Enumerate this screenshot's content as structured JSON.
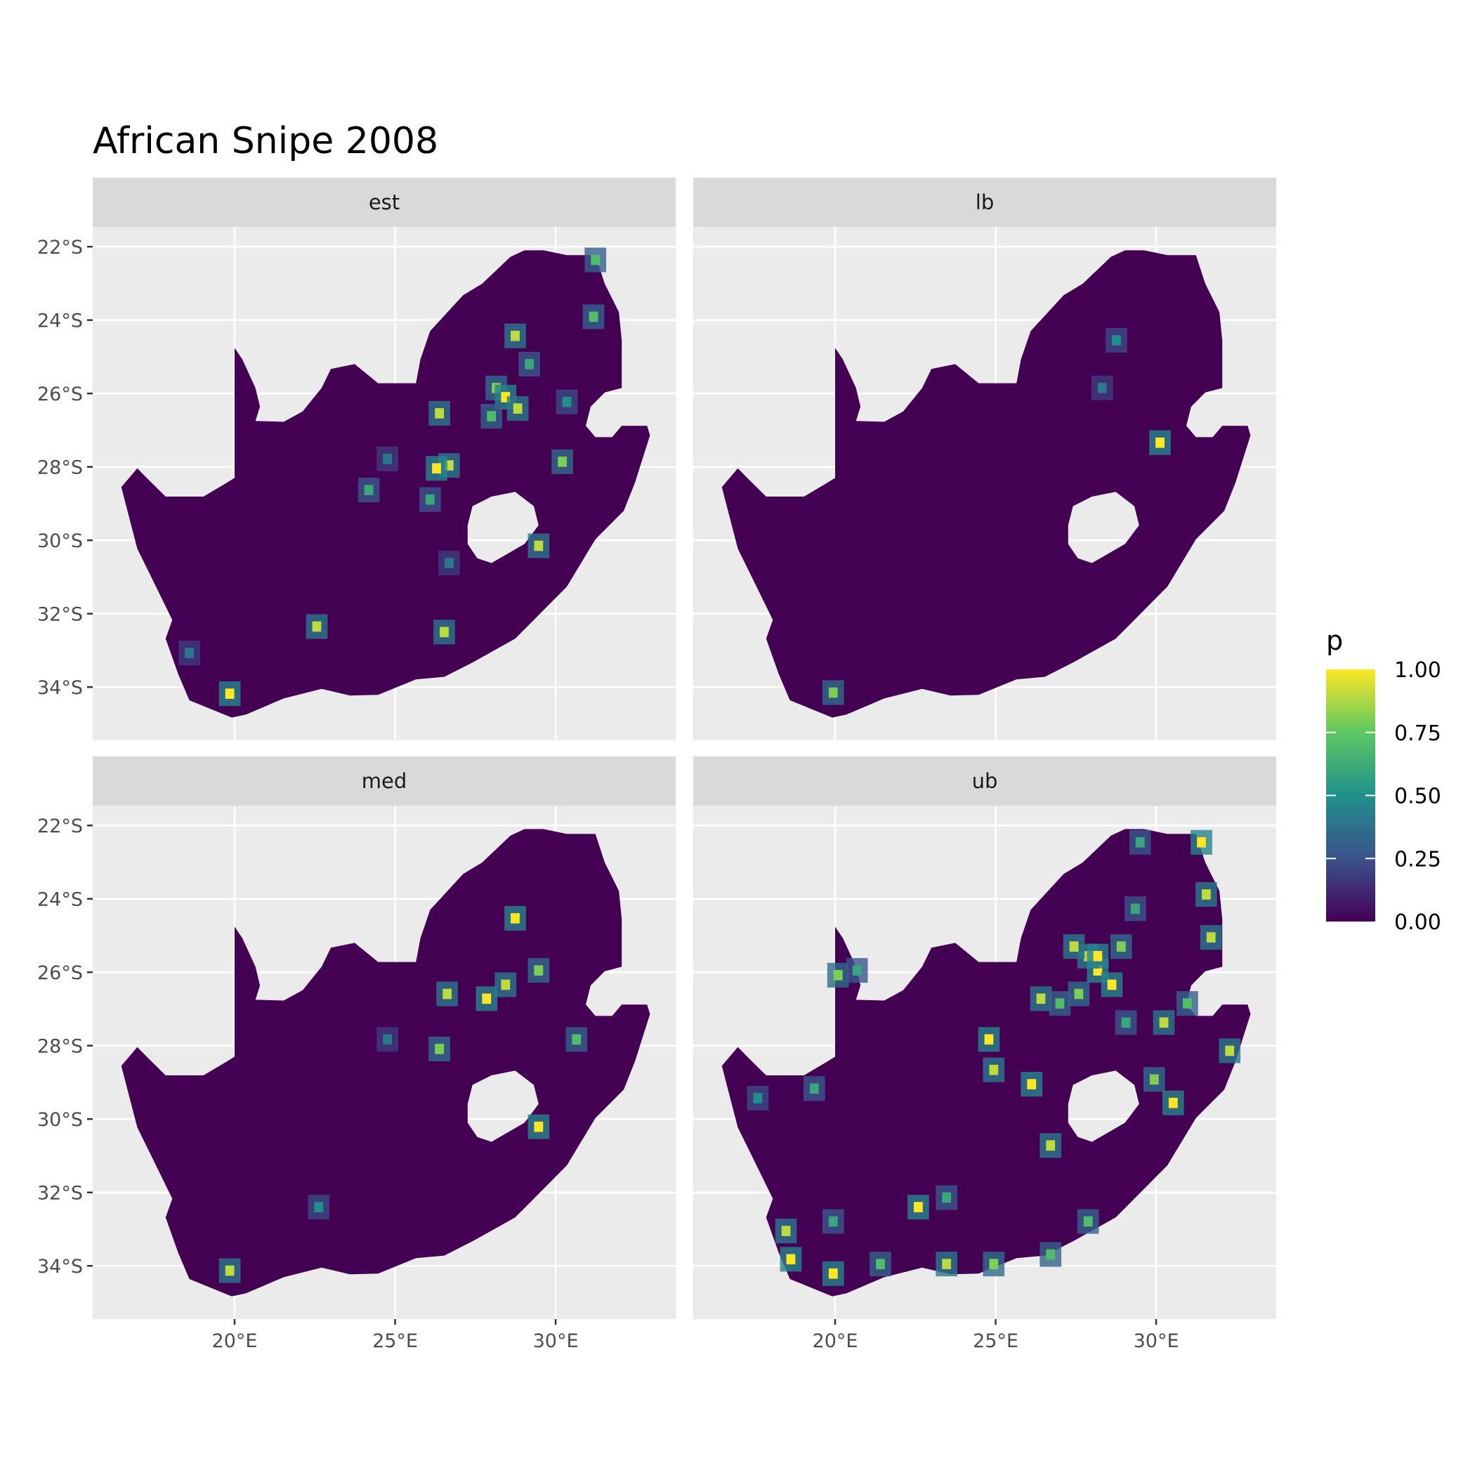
{
  "chart_data": {
    "type": "heatmap",
    "title": "African Snipe 2008",
    "facets": [
      "est",
      "lb",
      "med",
      "ub"
    ],
    "xlim": [
      15.58,
      33.74
    ],
    "ylim": [
      -35.45,
      -21.46
    ],
    "grid": true,
    "x_ticks": [
      {
        "value": 20,
        "label": "20°E"
      },
      {
        "value": 25,
        "label": "25°E"
      },
      {
        "value": 30,
        "label": "30°E"
      }
    ],
    "y_ticks": [
      {
        "value": -22,
        "label": "22°S"
      },
      {
        "value": -24,
        "label": "24°S"
      },
      {
        "value": -26,
        "label": "26°S"
      },
      {
        "value": -28,
        "label": "28°S"
      },
      {
        "value": -30,
        "label": "30°S"
      },
      {
        "value": -32,
        "label": "32°S"
      },
      {
        "value": -34,
        "label": "34°S"
      }
    ],
    "legend": {
      "title": "p",
      "position": "right",
      "palette": "viridis",
      "colors": [
        "#440154",
        "#3b528b",
        "#21908c",
        "#5dc863",
        "#fde725"
      ],
      "range": [
        0,
        1
      ],
      "ticks": [
        {
          "value": 1.0,
          "label": "1.00"
        },
        {
          "value": 0.75,
          "label": "0.75"
        },
        {
          "value": 0.5,
          "label": "0.50"
        },
        {
          "value": 0.25,
          "label": "0.25"
        },
        {
          "value": 0.0,
          "label": "0.00"
        }
      ]
    },
    "background_value": 0.0,
    "region_outline": [
      [
        20.0,
        -24.76
      ],
      [
        20.24,
        -25.07
      ],
      [
        20.65,
        -25.85
      ],
      [
        20.79,
        -26.36
      ],
      [
        20.65,
        -26.75
      ],
      [
        21.53,
        -26.77
      ],
      [
        22.12,
        -26.49
      ],
      [
        22.71,
        -25.85
      ],
      [
        23.0,
        -25.33
      ],
      [
        23.74,
        -25.2
      ],
      [
        24.47,
        -25.72
      ],
      [
        25.65,
        -25.72
      ],
      [
        25.79,
        -25.07
      ],
      [
        26.09,
        -24.3
      ],
      [
        27.12,
        -23.32
      ],
      [
        27.71,
        -23.01
      ],
      [
        28.59,
        -22.28
      ],
      [
        29.03,
        -22.1
      ],
      [
        29.62,
        -22.1
      ],
      [
        30.35,
        -22.23
      ],
      [
        31.24,
        -22.23
      ],
      [
        31.53,
        -23.01
      ],
      [
        31.97,
        -23.78
      ],
      [
        32.06,
        -24.55
      ],
      [
        32.06,
        -25.85
      ],
      [
        31.53,
        -25.97
      ],
      [
        31.09,
        -26.36
      ],
      [
        30.94,
        -26.88
      ],
      [
        31.24,
        -27.19
      ],
      [
        31.76,
        -27.19
      ],
      [
        32.06,
        -26.88
      ],
      [
        32.85,
        -26.88
      ],
      [
        32.94,
        -27.14
      ],
      [
        32.47,
        -28.43
      ],
      [
        32.12,
        -29.2
      ],
      [
        31.24,
        -29.97
      ],
      [
        30.35,
        -31.26
      ],
      [
        29.47,
        -32.04
      ],
      [
        28.74,
        -32.68
      ],
      [
        27.41,
        -33.33
      ],
      [
        26.53,
        -33.72
      ],
      [
        25.65,
        -33.79
      ],
      [
        24.47,
        -34.21
      ],
      [
        23.59,
        -34.23
      ],
      [
        22.71,
        -34.05
      ],
      [
        21.53,
        -34.31
      ],
      [
        20.35,
        -34.75
      ],
      [
        19.91,
        -34.83
      ],
      [
        19.32,
        -34.62
      ],
      [
        18.59,
        -34.36
      ],
      [
        18.24,
        -33.64
      ],
      [
        17.85,
        -32.68
      ],
      [
        18.06,
        -32.17
      ],
      [
        17.41,
        -31.01
      ],
      [
        16.97,
        -30.23
      ],
      [
        16.47,
        -28.55
      ],
      [
        16.97,
        -28.04
      ],
      [
        17.26,
        -28.3
      ],
      [
        17.85,
        -28.81
      ],
      [
        19.03,
        -28.81
      ],
      [
        19.76,
        -28.43
      ],
      [
        20.0,
        -28.3
      ]
    ],
    "region_hole": [
      [
        27.26,
        -29.59
      ],
      [
        27.41,
        -29.07
      ],
      [
        28.0,
        -28.81
      ],
      [
        28.74,
        -28.68
      ],
      [
        29.32,
        -29.07
      ],
      [
        29.47,
        -29.59
      ],
      [
        29.03,
        -30.1
      ],
      [
        28.0,
        -30.62
      ],
      [
        27.56,
        -30.49
      ],
      [
        27.26,
        -30.1
      ]
    ],
    "panels": [
      {
        "facet": "est",
        "cells": [
          [
            28.74,
            -24.43,
            0.9
          ],
          [
            28.15,
            -25.85,
            0.8
          ],
          [
            28.44,
            -26.1,
            1.0
          ],
          [
            28.82,
            -26.41,
            0.9
          ],
          [
            28.0,
            -26.62,
            0.7
          ],
          [
            26.38,
            -26.54,
            0.9
          ],
          [
            26.68,
            -27.96,
            0.9
          ],
          [
            26.29,
            -28.04,
            1.0
          ],
          [
            26.09,
            -28.89,
            0.6
          ],
          [
            24.76,
            -27.78,
            0.4
          ],
          [
            24.18,
            -28.63,
            0.6
          ],
          [
            22.56,
            -32.35,
            0.9
          ],
          [
            26.68,
            -30.62,
            0.4
          ],
          [
            29.47,
            -30.15,
            0.9
          ],
          [
            30.21,
            -27.86,
            0.8
          ],
          [
            31.18,
            -23.91,
            0.7
          ],
          [
            31.24,
            -22.36,
            0.7
          ],
          [
            18.59,
            -33.07,
            0.4
          ],
          [
            19.85,
            -34.18,
            1.0
          ],
          [
            26.53,
            -32.5,
            0.9
          ],
          [
            29.18,
            -25.2,
            0.6
          ],
          [
            30.35,
            -26.23,
            0.5
          ]
        ]
      },
      {
        "facet": "lb",
        "cells": [
          [
            30.12,
            -27.34,
            1.0
          ],
          [
            19.94,
            -34.15,
            0.8
          ],
          [
            28.76,
            -24.55,
            0.5
          ],
          [
            28.32,
            -25.85,
            0.4
          ]
        ]
      },
      {
        "facet": "med",
        "cells": [
          [
            28.74,
            -24.53,
            1.0
          ],
          [
            27.85,
            -26.72,
            1.0
          ],
          [
            28.44,
            -26.34,
            0.9
          ],
          [
            29.47,
            -25.95,
            0.8
          ],
          [
            26.62,
            -26.59,
            0.9
          ],
          [
            26.38,
            -28.09,
            0.8
          ],
          [
            22.62,
            -32.4,
            0.5
          ],
          [
            29.47,
            -30.21,
            1.0
          ],
          [
            19.85,
            -34.13,
            0.9
          ],
          [
            24.76,
            -27.83,
            0.4
          ],
          [
            30.65,
            -27.83,
            0.7
          ]
        ]
      },
      {
        "facet": "ub",
        "cells": [
          [
            28.18,
            -25.95,
            1.0
          ],
          [
            27.88,
            -25.56,
            0.9
          ],
          [
            28.62,
            -26.34,
            1.0
          ],
          [
            27.59,
            -26.59,
            0.8
          ],
          [
            26.41,
            -26.72,
            0.9
          ],
          [
            27.0,
            -26.85,
            0.7
          ],
          [
            28.91,
            -25.3,
            0.8
          ],
          [
            29.35,
            -24.27,
            0.6
          ],
          [
            31.41,
            -22.46,
            1.0
          ],
          [
            31.56,
            -23.88,
            0.9
          ],
          [
            31.71,
            -25.05,
            0.9
          ],
          [
            30.24,
            -27.37,
            0.9
          ],
          [
            32.29,
            -28.14,
            0.9
          ],
          [
            30.53,
            -29.56,
            1.0
          ],
          [
            29.94,
            -28.92,
            0.8
          ],
          [
            26.12,
            -29.05,
            1.0
          ],
          [
            24.94,
            -28.66,
            0.9
          ],
          [
            24.79,
            -27.83,
            1.0
          ],
          [
            26.71,
            -30.72,
            0.9
          ],
          [
            22.59,
            -32.4,
            1.0
          ],
          [
            23.47,
            -32.14,
            0.6
          ],
          [
            18.62,
            -33.82,
            1.0
          ],
          [
            18.47,
            -33.05,
            0.9
          ],
          [
            19.94,
            -34.21,
            1.0
          ],
          [
            21.41,
            -33.95,
            0.7
          ],
          [
            23.47,
            -33.95,
            0.9
          ],
          [
            24.94,
            -33.95,
            0.8
          ],
          [
            27.88,
            -32.79,
            0.7
          ],
          [
            26.71,
            -33.69,
            0.7
          ],
          [
            20.09,
            -26.08,
            0.8
          ],
          [
            20.68,
            -25.95,
            0.6
          ],
          [
            29.06,
            -27.37,
            0.6
          ],
          [
            30.97,
            -26.85,
            0.7
          ],
          [
            29.5,
            -22.46,
            0.6
          ],
          [
            17.59,
            -29.43,
            0.5
          ],
          [
            19.35,
            -29.17,
            0.6
          ],
          [
            19.94,
            -32.79,
            0.6
          ],
          [
            27.44,
            -25.3,
            0.9
          ],
          [
            28.18,
            -25.56,
            1.0
          ]
        ]
      }
    ]
  }
}
